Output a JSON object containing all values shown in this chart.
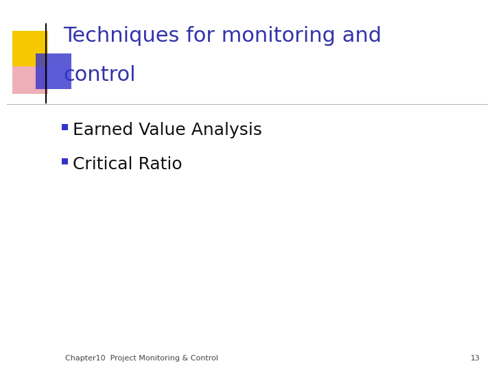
{
  "title_line1": "Techniques for monitoring and",
  "title_line2": "control",
  "title_color": "#3333aa",
  "bullet_items": [
    "Earned Value Analysis",
    "Critical Ratio"
  ],
  "bullet_color": "#111111",
  "bullet_marker_color": "#3333cc",
  "background_color": "#ffffff",
  "footer_text": "Chapter10  Project Monitoring & Control",
  "footer_page": "13",
  "footer_color": "#444444",
  "separator_color": "#999999",
  "logo_yellow_color": "#f5c800",
  "logo_red_color": "#e06070",
  "logo_blue_color": "#3333cc",
  "title_fontsize": 22,
  "bullet_fontsize": 18,
  "footer_fontsize": 8
}
